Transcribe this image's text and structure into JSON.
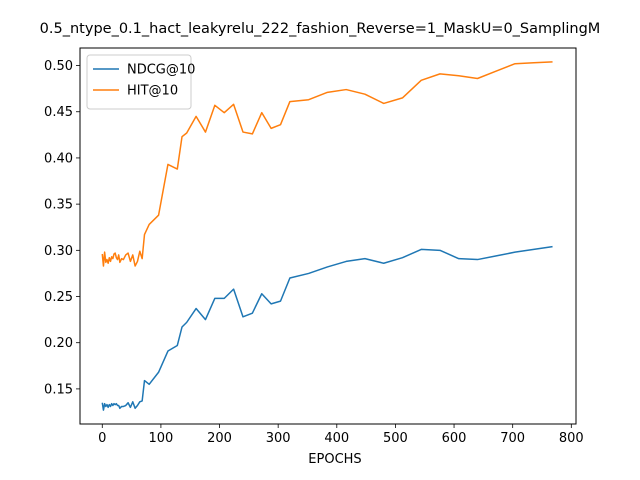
{
  "chart_data": {
    "type": "line",
    "title": "0.5_ntype_0.1_hact_leakyrelu_222_fashion_Reverse=1_MaskU=0_SamplingM",
    "xlabel": "EPOCHS",
    "ylabel": "",
    "xlim": [
      -38,
      808
    ],
    "ylim": [
      0.112,
      0.519
    ],
    "xticks": [
      0,
      100,
      200,
      300,
      400,
      500,
      600,
      700,
      800
    ],
    "yticks": [
      0.15,
      0.2,
      0.25,
      0.3,
      0.35,
      0.4,
      0.45,
      0.5
    ],
    "legend_position": "top-left",
    "series": [
      {
        "name": "NDCG@10",
        "color": "#1f77b4",
        "points": [
          [
            0,
            0.135
          ],
          [
            2,
            0.127
          ],
          [
            4,
            0.134
          ],
          [
            6,
            0.131
          ],
          [
            8,
            0.133
          ],
          [
            10,
            0.13
          ],
          [
            12,
            0.133
          ],
          [
            14,
            0.131
          ],
          [
            16,
            0.134
          ],
          [
            18,
            0.132
          ],
          [
            20,
            0.134
          ],
          [
            22,
            0.133
          ],
          [
            24,
            0.134
          ],
          [
            26,
            0.132
          ],
          [
            28,
            0.132
          ],
          [
            30,
            0.129
          ],
          [
            33,
            0.131
          ],
          [
            36,
            0.131
          ],
          [
            40,
            0.132
          ],
          [
            44,
            0.135
          ],
          [
            48,
            0.13
          ],
          [
            52,
            0.136
          ],
          [
            56,
            0.129
          ],
          [
            60,
            0.132
          ],
          [
            64,
            0.136
          ],
          [
            68,
            0.137
          ],
          [
            72,
            0.159
          ],
          [
            80,
            0.155
          ],
          [
            96,
            0.168
          ],
          [
            112,
            0.191
          ],
          [
            128,
            0.197
          ],
          [
            136,
            0.217
          ],
          [
            144,
            0.222
          ],
          [
            160,
            0.237
          ],
          [
            176,
            0.225
          ],
          [
            192,
            0.248
          ],
          [
            208,
            0.248
          ],
          [
            224,
            0.258
          ],
          [
            240,
            0.228
          ],
          [
            256,
            0.232
          ],
          [
            272,
            0.253
          ],
          [
            288,
            0.242
          ],
          [
            304,
            0.245
          ],
          [
            320,
            0.27
          ],
          [
            352,
            0.275
          ],
          [
            384,
            0.282
          ],
          [
            416,
            0.288
          ],
          [
            448,
            0.291
          ],
          [
            480,
            0.286
          ],
          [
            512,
            0.292
          ],
          [
            544,
            0.301
          ],
          [
            576,
            0.3
          ],
          [
            608,
            0.291
          ],
          [
            640,
            0.29
          ],
          [
            672,
            0.294
          ],
          [
            704,
            0.298
          ],
          [
            736,
            0.301
          ],
          [
            768,
            0.304
          ]
        ]
      },
      {
        "name": "HIT@10",
        "color": "#ff7f0e",
        "points": [
          [
            0,
            0.296
          ],
          [
            2,
            0.283
          ],
          [
            4,
            0.298
          ],
          [
            6,
            0.287
          ],
          [
            8,
            0.29
          ],
          [
            10,
            0.286
          ],
          [
            12,
            0.292
          ],
          [
            14,
            0.288
          ],
          [
            16,
            0.293
          ],
          [
            18,
            0.291
          ],
          [
            20,
            0.296
          ],
          [
            22,
            0.297
          ],
          [
            24,
            0.292
          ],
          [
            26,
            0.29
          ],
          [
            28,
            0.295
          ],
          [
            30,
            0.287
          ],
          [
            33,
            0.291
          ],
          [
            36,
            0.29
          ],
          [
            40,
            0.295
          ],
          [
            44,
            0.297
          ],
          [
            48,
            0.288
          ],
          [
            52,
            0.295
          ],
          [
            56,
            0.283
          ],
          [
            60,
            0.288
          ],
          [
            64,
            0.299
          ],
          [
            68,
            0.291
          ],
          [
            72,
            0.317
          ],
          [
            80,
            0.328
          ],
          [
            96,
            0.338
          ],
          [
            112,
            0.393
          ],
          [
            128,
            0.388
          ],
          [
            136,
            0.423
          ],
          [
            144,
            0.427
          ],
          [
            160,
            0.445
          ],
          [
            176,
            0.428
          ],
          [
            192,
            0.457
          ],
          [
            208,
            0.449
          ],
          [
            224,
            0.458
          ],
          [
            240,
            0.428
          ],
          [
            256,
            0.426
          ],
          [
            272,
            0.449
          ],
          [
            288,
            0.432
          ],
          [
            304,
            0.436
          ],
          [
            320,
            0.461
          ],
          [
            352,
            0.463
          ],
          [
            384,
            0.471
          ],
          [
            416,
            0.474
          ],
          [
            448,
            0.469
          ],
          [
            480,
            0.459
          ],
          [
            512,
            0.465
          ],
          [
            544,
            0.484
          ],
          [
            576,
            0.491
          ],
          [
            608,
            0.489
          ],
          [
            640,
            0.486
          ],
          [
            672,
            0.494
          ],
          [
            704,
            0.502
          ],
          [
            736,
            0.503
          ],
          [
            768,
            0.504
          ]
        ]
      }
    ]
  }
}
